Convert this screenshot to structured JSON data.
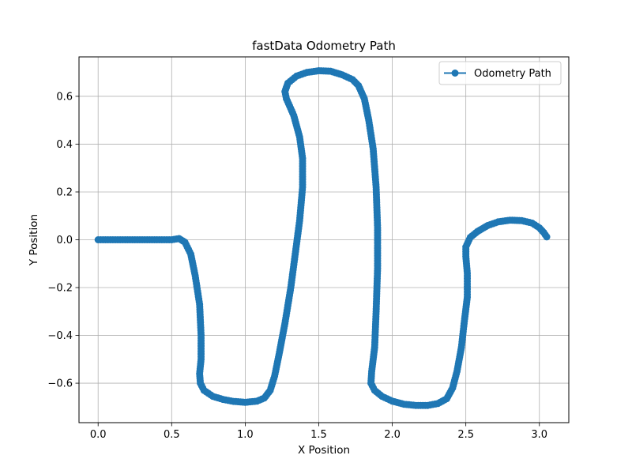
{
  "chart_data": {
    "type": "line",
    "title": "fastData Odometry Path",
    "xlabel": "X Position",
    "ylabel": "Y Position",
    "xlim": [
      -0.13,
      3.2
    ],
    "ylim": [
      -0.765,
      0.765
    ],
    "xticks": [
      0.0,
      0.5,
      1.0,
      1.5,
      2.0,
      2.5,
      3.0
    ],
    "yticks": [
      -0.6,
      -0.4,
      -0.2,
      0.0,
      0.2,
      0.4,
      0.6
    ],
    "xtick_labels": [
      "0.0",
      "0.5",
      "1.0",
      "1.5",
      "2.0",
      "2.5",
      "3.0"
    ],
    "ytick_labels": [
      "−0.6",
      "−0.4",
      "−0.2",
      "0.0",
      "0.2",
      "0.4",
      "0.6"
    ],
    "grid": true,
    "legend_position": "top-right",
    "series": [
      {
        "name": "Odometry Path",
        "color": "#1f77b4",
        "marker": "circle",
        "points": [
          [
            0.0,
            0.0
          ],
          [
            0.25,
            0.0
          ],
          [
            0.5,
            0.0
          ],
          [
            0.55,
            0.005
          ],
          [
            0.59,
            -0.01
          ],
          [
            0.63,
            -0.06
          ],
          [
            0.66,
            -0.15
          ],
          [
            0.69,
            -0.27
          ],
          [
            0.7,
            -0.4
          ],
          [
            0.7,
            -0.5
          ],
          [
            0.69,
            -0.56
          ],
          [
            0.695,
            -0.6
          ],
          [
            0.72,
            -0.63
          ],
          [
            0.78,
            -0.655
          ],
          [
            0.85,
            -0.668
          ],
          [
            0.92,
            -0.676
          ],
          [
            1.0,
            -0.68
          ],
          [
            1.08,
            -0.675
          ],
          [
            1.13,
            -0.662
          ],
          [
            1.17,
            -0.63
          ],
          [
            1.2,
            -0.57
          ],
          [
            1.23,
            -0.48
          ],
          [
            1.27,
            -0.35
          ],
          [
            1.31,
            -0.2
          ],
          [
            1.34,
            -0.06
          ],
          [
            1.37,
            0.08
          ],
          [
            1.39,
            0.22
          ],
          [
            1.39,
            0.34
          ],
          [
            1.37,
            0.43
          ],
          [
            1.33,
            0.52
          ],
          [
            1.28,
            0.59
          ],
          [
            1.27,
            0.62
          ],
          [
            1.29,
            0.655
          ],
          [
            1.35,
            0.685
          ],
          [
            1.42,
            0.7
          ],
          [
            1.5,
            0.707
          ],
          [
            1.58,
            0.705
          ],
          [
            1.66,
            0.69
          ],
          [
            1.73,
            0.67
          ],
          [
            1.77,
            0.645
          ],
          [
            1.81,
            0.59
          ],
          [
            1.84,
            0.5
          ],
          [
            1.87,
            0.38
          ],
          [
            1.89,
            0.22
          ],
          [
            1.9,
            0.05
          ],
          [
            1.9,
            -0.12
          ],
          [
            1.89,
            -0.3
          ],
          [
            1.88,
            -0.45
          ],
          [
            1.86,
            -0.55
          ],
          [
            1.855,
            -0.6
          ],
          [
            1.88,
            -0.63
          ],
          [
            1.93,
            -0.655
          ],
          [
            2.0,
            -0.675
          ],
          [
            2.08,
            -0.688
          ],
          [
            2.16,
            -0.693
          ],
          [
            2.24,
            -0.693
          ],
          [
            2.31,
            -0.685
          ],
          [
            2.37,
            -0.665
          ],
          [
            2.41,
            -0.62
          ],
          [
            2.44,
            -0.55
          ],
          [
            2.47,
            -0.45
          ],
          [
            2.49,
            -0.34
          ],
          [
            2.51,
            -0.24
          ],
          [
            2.51,
            -0.14
          ],
          [
            2.5,
            -0.07
          ],
          [
            2.5,
            -0.03
          ],
          [
            2.53,
            0.01
          ],
          [
            2.58,
            0.035
          ],
          [
            2.65,
            0.06
          ],
          [
            2.72,
            0.075
          ],
          [
            2.8,
            0.082
          ],
          [
            2.88,
            0.08
          ],
          [
            2.95,
            0.07
          ],
          [
            3.0,
            0.05
          ],
          [
            3.03,
            0.03
          ],
          [
            3.05,
            0.012
          ]
        ]
      }
    ]
  }
}
